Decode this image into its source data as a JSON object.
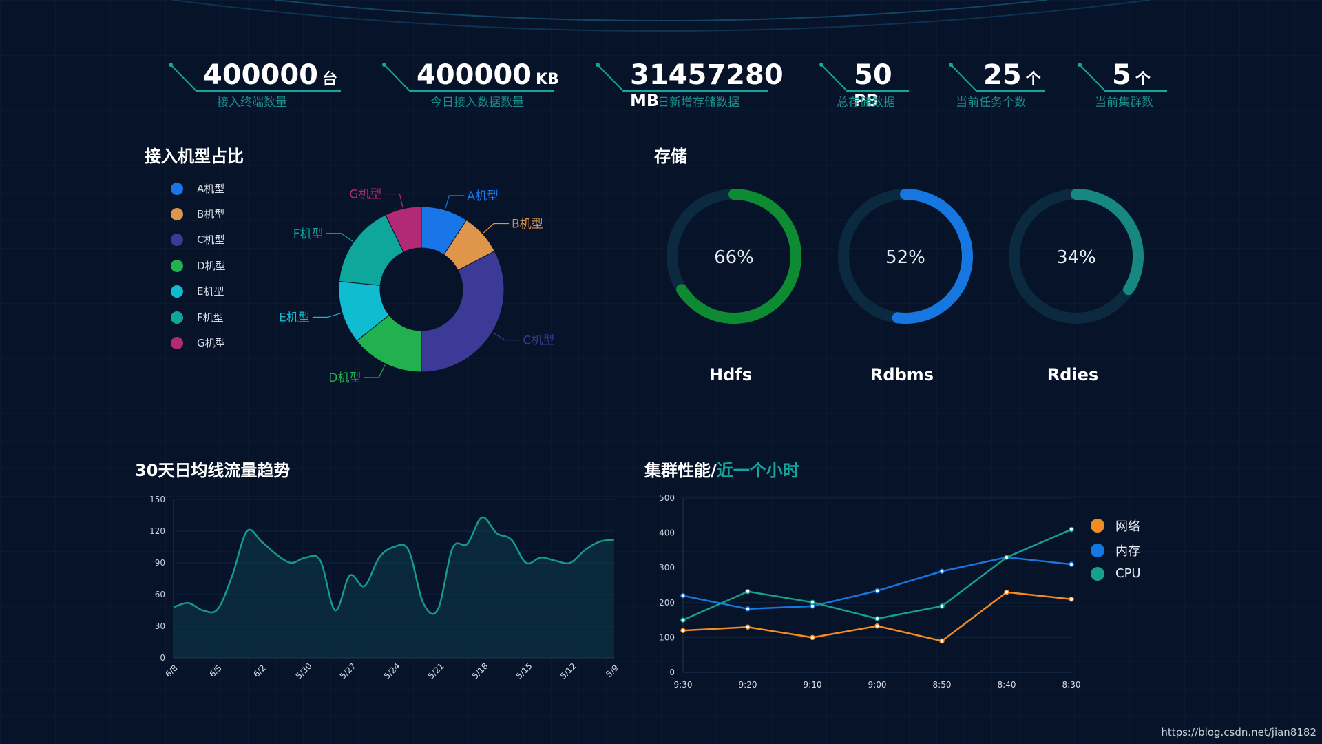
{
  "stats": [
    {
      "value": "400000",
      "unit": "台",
      "label": "接入终端数量"
    },
    {
      "value": "400000",
      "unit": "KB",
      "label": "今日接入数据数量"
    },
    {
      "value": "31457280",
      "unit": "MB",
      "label": "日新增存储数据"
    },
    {
      "value": "50",
      "unit": "PB",
      "label": "总存储数据"
    },
    {
      "value": "25",
      "unit": "个",
      "label": "当前任务个数"
    },
    {
      "value": "5",
      "unit": "个",
      "label": "当前集群数"
    }
  ],
  "sections": {
    "models_title": "接入机型占比",
    "storage_title": "存储",
    "trend_title": "30天日均线流量趋势",
    "cluster_title_main": "集群性能/",
    "cluster_title_accent": "近一个小时"
  },
  "watermark": "https://blog.csdn.net/jian8182",
  "chart_data": [
    {
      "type": "pie",
      "title": "接入机型占比",
      "labels": [
        "A机型",
        "B机型",
        "C机型",
        "D机型",
        "E机型",
        "F机型",
        "G机型"
      ],
      "values": [
        9,
        8,
        32,
        14,
        12,
        16,
        7
      ],
      "colors": [
        "#1976e8",
        "#e0964a",
        "#3b3a96",
        "#21b14f",
        "#0fbcd0",
        "#0fa79b",
        "#b22a73"
      ],
      "legend_position": "left"
    },
    {
      "type": "pie",
      "title": "存储",
      "gauges": [
        {
          "name": "Hdfs",
          "value": 66,
          "label": "66%",
          "color": "#0e8a33"
        },
        {
          "name": "Rdbms",
          "value": 52,
          "label": "52%",
          "color": "#1677e0"
        },
        {
          "name": "Rdies",
          "value": 34,
          "label": "34%",
          "color": "#168880"
        }
      ]
    },
    {
      "type": "area",
      "title": "30天日均线流量趋势",
      "x": [
        "6/8",
        "6/7",
        "6/6",
        "6/5",
        "6/4",
        "6/3",
        "6/2",
        "6/1",
        "5/31",
        "5/30",
        "5/29",
        "5/28",
        "5/27",
        "5/26",
        "5/25",
        "5/24",
        "5/23",
        "5/22",
        "5/21",
        "5/20",
        "5/19",
        "5/18",
        "5/17",
        "5/16",
        "5/15",
        "5/14",
        "5/13",
        "5/12",
        "5/11",
        "5/10",
        "5/9"
      ],
      "tick_labels": [
        "6/8",
        "6/5",
        "6/2",
        "5/30",
        "5/27",
        "5/24",
        "5/21",
        "5/18",
        "5/15",
        "5/12",
        "5/9"
      ],
      "values": [
        48,
        52,
        45,
        46,
        78,
        120,
        110,
        98,
        90,
        95,
        92,
        45,
        78,
        68,
        95,
        105,
        102,
        52,
        46,
        104,
        108,
        133,
        118,
        112,
        90,
        95,
        92,
        90,
        102,
        110,
        112
      ],
      "ylim": [
        0,
        150
      ],
      "yticks": [
        0,
        30,
        60,
        90,
        120,
        150
      ],
      "color": "#149a8f",
      "grid": true
    },
    {
      "type": "line",
      "title": "集群性能/近一个小时",
      "categories": [
        "9:30",
        "9:20",
        "9:10",
        "9:00",
        "8:50",
        "8:40",
        "8:30"
      ],
      "series": [
        {
          "name": "网络",
          "values": [
            120,
            130,
            100,
            133,
            90,
            230,
            210
          ],
          "color": "#f28b22"
        },
        {
          "name": "内存",
          "values": [
            220,
            182,
            190,
            234,
            290,
            330,
            310
          ],
          "color": "#1677e0"
        },
        {
          "name": "CPU",
          "values": [
            150,
            232,
            201,
            154,
            190,
            330,
            410
          ],
          "color": "#16a090"
        }
      ],
      "ylim": [
        0,
        500
      ],
      "yticks": [
        0,
        100,
        200,
        300,
        400,
        500
      ],
      "legend_position": "right",
      "grid": true
    }
  ]
}
